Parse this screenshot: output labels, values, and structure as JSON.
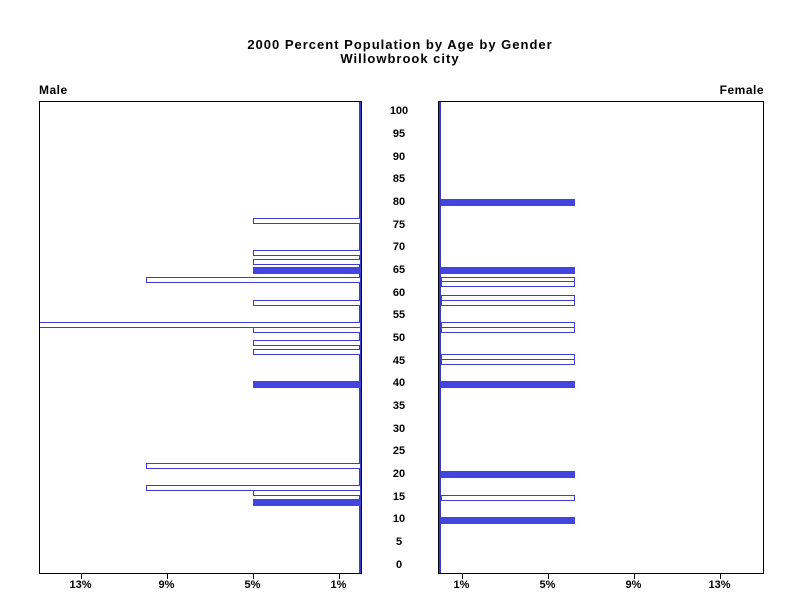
{
  "title": {
    "line1": "2000 Percent Population by Age by Gender",
    "line2": "Willowbrook city"
  },
  "panel_labels": {
    "left": "Male",
    "right": "Female"
  },
  "colors": {
    "bar_fill": "#4444e0",
    "bar_outline": "#3c3cd8",
    "zero_axis_line": "#3a3ad0",
    "border": "#000000",
    "text": "#000000"
  },
  "chart_data": {
    "type": "bar",
    "subtype": "population_pyramid",
    "title": "2000 Percent Population by Age by Gender",
    "subtitle": "Willowbrook city",
    "legend_left": "Male",
    "legend_right": "Female",
    "grid": false,
    "age_axis": {
      "min": 0,
      "max": 100,
      "tick_step": 5,
      "tick_labels": [
        100,
        95,
        90,
        85,
        80,
        75,
        70,
        65,
        60,
        55,
        50,
        45,
        40,
        35,
        30,
        25,
        20,
        15,
        10,
        5,
        0
      ]
    },
    "pct_axis": {
      "tick_values": [
        1,
        5,
        9,
        13
      ],
      "tick_labels": [
        "1%",
        "5%",
        "9%",
        "13%"
      ],
      "panel_visible_max_pct": 14.9
    },
    "series": [
      {
        "name": "Male",
        "side": "left",
        "unit": "percent of gender population",
        "points": [
          {
            "age": 76,
            "pct": 5,
            "solid": false
          },
          {
            "age": 69,
            "pct": 5,
            "solid": false
          },
          {
            "age": 67,
            "pct": 5,
            "solid": false
          },
          {
            "age": 65,
            "pct": 5,
            "solid": true
          },
          {
            "age": 63,
            "pct": 10,
            "solid": false
          },
          {
            "age": 58,
            "pct": 5,
            "solid": false
          },
          {
            "age": 53,
            "pct": 15,
            "solid": false
          },
          {
            "age": 52,
            "pct": 5,
            "solid": false
          },
          {
            "age": 49,
            "pct": 5,
            "solid": false
          },
          {
            "age": 47,
            "pct": 5,
            "solid": false
          },
          {
            "age": 40,
            "pct": 5,
            "solid": true
          },
          {
            "age": 22,
            "pct": 10,
            "solid": false
          },
          {
            "age": 17,
            "pct": 10,
            "solid": false
          },
          {
            "age": 16,
            "pct": 5,
            "solid": false
          },
          {
            "age": 14,
            "pct": 5,
            "solid": true
          }
        ]
      },
      {
        "name": "Female",
        "side": "right",
        "unit": "percent of gender population",
        "points": [
          {
            "age": 80,
            "pct": 6.25,
            "solid": true
          },
          {
            "age": 65,
            "pct": 6.25,
            "solid": true
          },
          {
            "age": 63,
            "pct": 6.25,
            "solid": false
          },
          {
            "age": 62,
            "pct": 6.25,
            "solid": false
          },
          {
            "age": 59,
            "pct": 6.25,
            "solid": false
          },
          {
            "age": 58,
            "pct": 6.25,
            "solid": false
          },
          {
            "age": 53,
            "pct": 6.25,
            "solid": false
          },
          {
            "age": 52,
            "pct": 6.25,
            "solid": false
          },
          {
            "age": 46,
            "pct": 6.25,
            "solid": false
          },
          {
            "age": 45,
            "pct": 6.25,
            "solid": false
          },
          {
            "age": 40,
            "pct": 6.25,
            "solid": true
          },
          {
            "age": 20,
            "pct": 6.25,
            "solid": true
          },
          {
            "age": 15,
            "pct": 6.25,
            "solid": false
          },
          {
            "age": 10,
            "pct": 6.25,
            "solid": true
          }
        ]
      }
    ]
  }
}
